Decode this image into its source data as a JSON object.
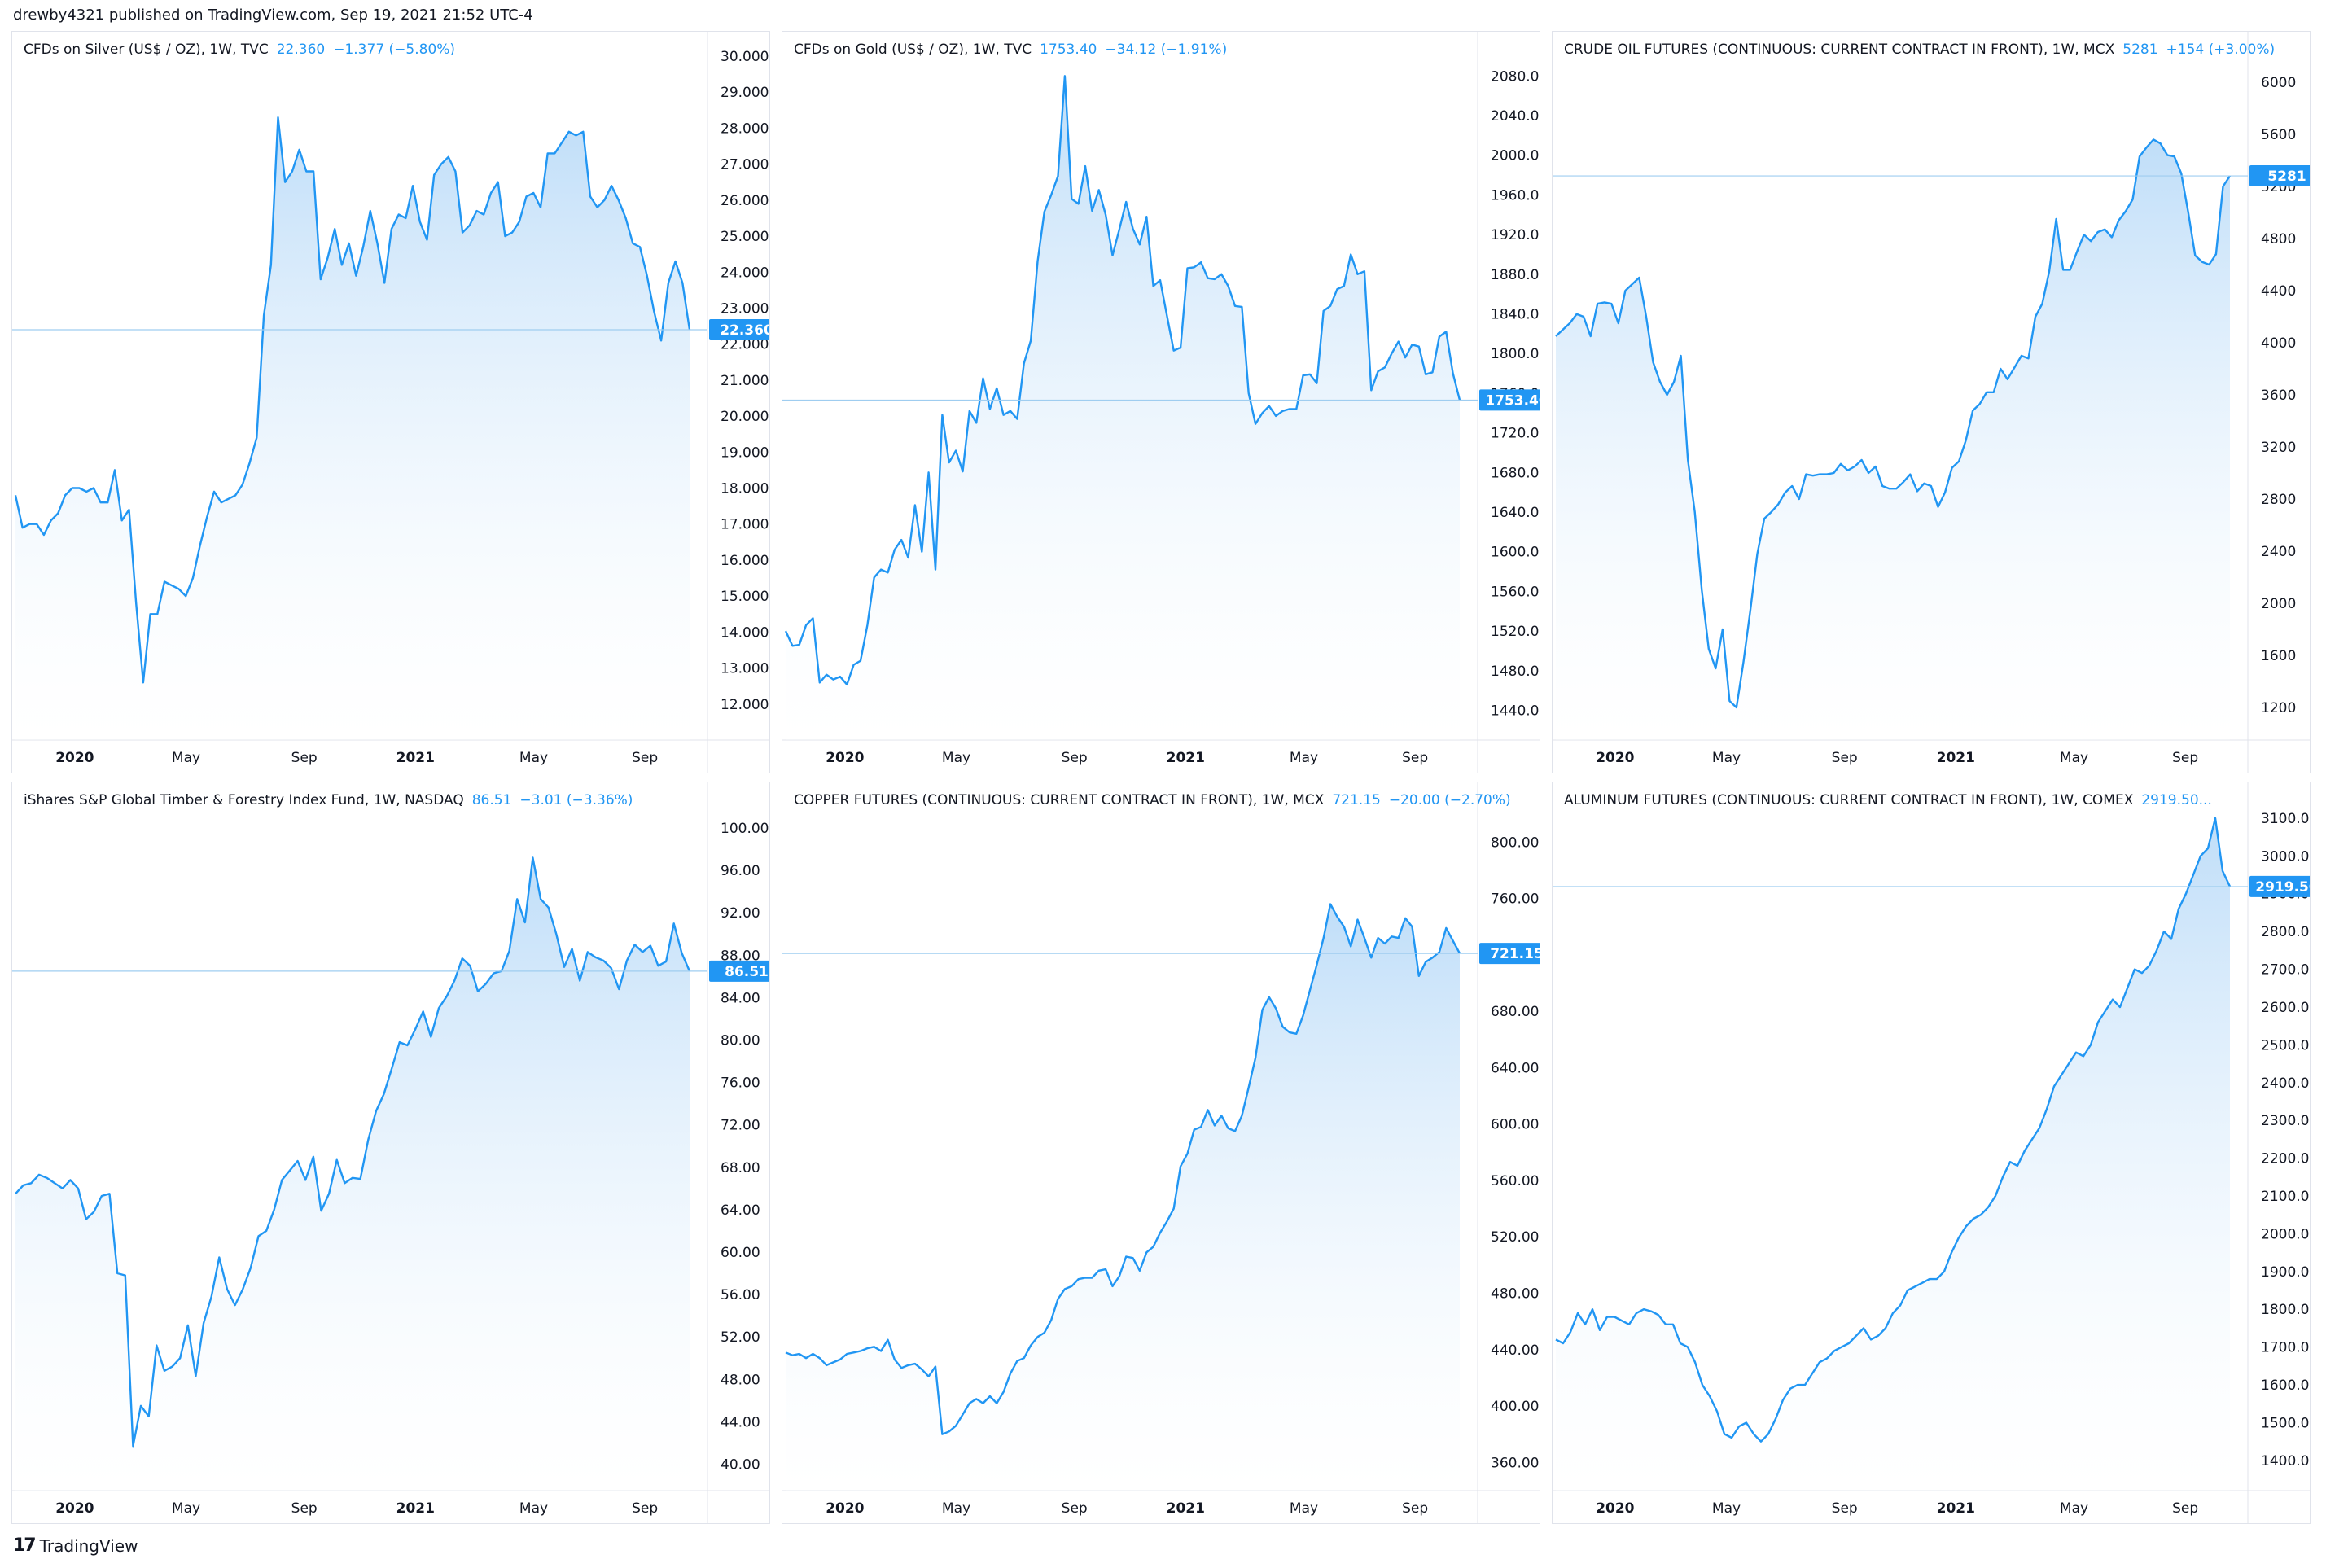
{
  "header": {
    "published": "drewby4321 published on TradingView.com, Sep 19, 2021 21:52 UTC-4"
  },
  "footer": {
    "brand": "TradingView",
    "icon": "tradingview-logo-icon"
  },
  "colors": {
    "line": "#2196f3",
    "fill_top": "#bcdcf8",
    "grid": "#f0f3fa",
    "text": "#131722",
    "border": "#e0e3eb"
  },
  "chart_data": [
    {
      "type": "area",
      "title": "CFDs on Silver (US$ / OZ), 1W, TVC",
      "last_price": "22.360",
      "change": "−1.377 (−5.80%)",
      "price_label": "22.360",
      "x_labels": [
        "2020",
        "May",
        "Sep",
        "2021",
        "May",
        "Sep"
      ],
      "y_ticks": [
        "30.000",
        "29.000",
        "28.000",
        "27.000",
        "26.000",
        "25.000",
        "24.000",
        "23.000",
        "22.000",
        "21.000",
        "20.000",
        "19.000",
        "18.000",
        "17.000",
        "16.000",
        "15.000",
        "14.000",
        "13.000",
        "12.000"
      ],
      "ylim": [
        11.0,
        30.0
      ],
      "values": [
        17.8,
        16.9,
        17.0,
        17.0,
        16.7,
        17.1,
        17.3,
        17.8,
        18.0,
        18.0,
        17.9,
        18.0,
        17.6,
        17.6,
        18.5,
        17.1,
        17.4,
        14.8,
        12.6,
        14.5,
        14.5,
        15.4,
        15.3,
        15.2,
        15.0,
        15.5,
        16.4,
        17.2,
        17.9,
        17.6,
        17.7,
        17.8,
        18.1,
        18.7,
        19.4,
        22.8,
        24.2,
        28.3,
        26.5,
        26.8,
        27.4,
        26.8,
        26.8,
        23.8,
        24.4,
        25.2,
        24.2,
        24.8,
        23.9,
        24.7,
        25.7,
        24.8,
        23.7,
        25.2,
        25.6,
        25.5,
        26.4,
        25.4,
        24.9,
        26.7,
        27.0,
        27.2,
        26.8,
        25.1,
        25.3,
        25.7,
        25.6,
        26.2,
        26.5,
        25.0,
        25.1,
        25.4,
        26.1,
        26.2,
        25.8,
        27.3,
        27.3,
        27.6,
        27.9,
        27.8,
        27.9,
        26.1,
        25.8,
        26.0,
        26.4,
        26.0,
        25.5,
        24.8,
        24.7,
        23.9,
        22.9,
        22.1,
        23.7,
        24.3,
        23.7,
        22.4
      ]
    },
    {
      "type": "area",
      "title": "CFDs on Gold (US$ / OZ), 1W, TVC",
      "last_price": "1753.40",
      "change": "−34.12 (−1.91%)",
      "price_label": "1753.40",
      "x_labels": [
        "2020",
        "May",
        "Sep",
        "2021",
        "May",
        "Sep"
      ],
      "y_ticks": [
        "2080.00",
        "2040.00",
        "2000.00",
        "1960.00",
        "1920.00",
        "1880.00",
        "1840.00",
        "1800.00",
        "1760.00",
        "1720.00",
        "1680.00",
        "1640.00",
        "1600.00",
        "1560.00",
        "1520.00",
        "1480.00",
        "1440.00"
      ],
      "ylim": [
        1410,
        2100
      ],
      "values": [
        1520,
        1505,
        1506,
        1526,
        1533,
        1468,
        1476,
        1471,
        1474,
        1466,
        1486,
        1490,
        1526,
        1574,
        1582,
        1579,
        1602,
        1612,
        1594,
        1647,
        1600,
        1680,
        1582,
        1738,
        1690,
        1702,
        1681,
        1742,
        1730,
        1775,
        1744,
        1765,
        1738,
        1742,
        1734,
        1790,
        1813,
        1893,
        1943,
        1960,
        1979,
        2080,
        1956,
        1951,
        1989,
        1944,
        1965,
        1940,
        1899,
        1925,
        1953,
        1926,
        1910,
        1938,
        1868,
        1874,
        1838,
        1803,
        1806,
        1886,
        1887,
        1892,
        1876,
        1875,
        1880,
        1868,
        1848,
        1847,
        1760,
        1729,
        1740,
        1747,
        1737,
        1742,
        1744,
        1744,
        1778,
        1779,
        1770,
        1843,
        1848,
        1865,
        1868,
        1900,
        1880,
        1883,
        1763,
        1782,
        1786,
        1800,
        1812,
        1796,
        1809,
        1807,
        1779,
        1781,
        1817,
        1822,
        1780,
        1753
      ]
    },
    {
      "type": "area",
      "title": "CRUDE OIL FUTURES (CONTINUOUS: CURRENT CONTRACT IN FRONT), 1W, MCX",
      "last_price": "5281",
      "change": "+154 (+3.00%)",
      "price_label": "5281",
      "x_labels": [
        "2020",
        "May",
        "Sep",
        "2021",
        "May",
        "Sep"
      ],
      "y_ticks": [
        "6000",
        "5600",
        "5200",
        "4800",
        "4400",
        "4000",
        "3600",
        "3200",
        "2800",
        "2400",
        "2000",
        "1600",
        "1200"
      ],
      "ylim": [
        950,
        6200
      ],
      "values": [
        4050,
        4100,
        4150,
        4220,
        4200,
        4050,
        4300,
        4310,
        4300,
        4150,
        4400,
        4450,
        4500,
        4200,
        3850,
        3700,
        3600,
        3700,
        3900,
        3100,
        2700,
        2100,
        1650,
        1500,
        1800,
        1250,
        1200,
        1550,
        1950,
        2380,
        2650,
        2700,
        2760,
        2850,
        2900,
        2800,
        2990,
        2980,
        2990,
        2990,
        3000,
        3070,
        3020,
        3050,
        3100,
        3000,
        3050,
        2900,
        2880,
        2880,
        2930,
        2990,
        2860,
        2920,
        2900,
        2740,
        2850,
        3040,
        3090,
        3250,
        3480,
        3530,
        3620,
        3620,
        3800,
        3720,
        3810,
        3900,
        3880,
        4200,
        4300,
        4550,
        4950,
        4560,
        4560,
        4700,
        4830,
        4780,
        4850,
        4870,
        4810,
        4940,
        5010,
        5100,
        5430,
        5500,
        5560,
        5530,
        5440,
        5430,
        5300,
        5000,
        4670,
        4620,
        4600,
        4680,
        5200,
        5281
      ]
    },
    {
      "type": "area",
      "title": "iShares S&P Global Timber & Forestry Index Fund, 1W, NASDAQ",
      "last_price": "86.51",
      "change": "−3.01 (−3.36%)",
      "price_label": "86.51",
      "x_labels": [
        "2020",
        "May",
        "Sep",
        "2021",
        "May",
        "Sep"
      ],
      "y_ticks": [
        "100.00",
        "96.00",
        "92.00",
        "88.00",
        "84.00",
        "80.00",
        "76.00",
        "72.00",
        "68.00",
        "64.00",
        "60.00",
        "56.00",
        "52.00",
        "48.00",
        "44.00",
        "40.00"
      ],
      "ylim": [
        37.5,
        102.0
      ],
      "values": [
        65.5,
        66.3,
        66.5,
        67.3,
        67.0,
        66.5,
        66.0,
        66.8,
        66.0,
        63.1,
        63.8,
        65.3,
        65.5,
        58.0,
        57.8,
        41.7,
        45.5,
        44.5,
        51.2,
        48.8,
        49.2,
        50.0,
        53.1,
        48.3,
        53.3,
        55.8,
        59.5,
        56.5,
        55.0,
        56.5,
        58.5,
        61.5,
        62.0,
        64.0,
        66.8,
        67.7,
        68.6,
        66.8,
        69.0,
        63.9,
        65.5,
        68.7,
        66.5,
        67.0,
        66.9,
        70.6,
        73.3,
        74.9,
        77.3,
        79.8,
        79.5,
        81.0,
        82.7,
        80.3,
        83.0,
        84.1,
        85.6,
        87.7,
        87.0,
        84.6,
        85.3,
        86.3,
        86.5,
        88.4,
        93.3,
        91.1,
        97.2,
        93.3,
        92.5,
        90.0,
        86.9,
        88.6,
        85.6,
        88.3,
        87.8,
        87.5,
        86.8,
        84.8,
        87.5,
        89.0,
        88.3,
        88.9,
        87.0,
        87.4,
        91.0,
        88.2,
        86.5
      ]
    },
    {
      "type": "area",
      "title": "COPPER FUTURES (CONTINUOUS: CURRENT CONTRACT IN FRONT), 1W, MCX",
      "last_price": "721.15",
      "change": "−20.00 (−2.70%)",
      "price_label": "721.15",
      "x_labels": [
        "2020",
        "May",
        "Sep",
        "2021",
        "May",
        "Sep"
      ],
      "y_ticks": [
        "800.00",
        "760.00",
        "720.00",
        "680.00",
        "640.00",
        "600.00",
        "560.00",
        "520.00",
        "480.00",
        "440.00",
        "400.00",
        "360.00"
      ],
      "ylim": [
        340,
        825
      ],
      "values": [
        438,
        436,
        437,
        434,
        437,
        434,
        429,
        431,
        433,
        437,
        438,
        439,
        441,
        442,
        439,
        447,
        433,
        427,
        429,
        430,
        426,
        421,
        428,
        380,
        382,
        386,
        394,
        402,
        405,
        402,
        407,
        402,
        410,
        423,
        432,
        434,
        443,
        449,
        452,
        461,
        476,
        483,
        485,
        490,
        491,
        491,
        496,
        497,
        485,
        492,
        506,
        505,
        496,
        509,
        513,
        523,
        531,
        540,
        570,
        579,
        596,
        598,
        610,
        599,
        606,
        597,
        595,
        606,
        626,
        647,
        681,
        690,
        682,
        669,
        665,
        664,
        677,
        695,
        713,
        732,
        756,
        747,
        740,
        726,
        745,
        732,
        718,
        732,
        728,
        733,
        732,
        746,
        740,
        705,
        715,
        718,
        722,
        739,
        730,
        721
      ]
    },
    {
      "type": "area",
      "title": "ALUMINUM FUTURES (CONTINUOUS: CURRENT CONTRACT IN FRONT), 1W, COMEX",
      "last_price": "2919.50...",
      "change": "",
      "price_label": "2919.50",
      "x_labels": [
        "2020",
        "May",
        "Sep",
        "2021",
        "May",
        "Sep"
      ],
      "y_ticks": [
        "3100.00",
        "3000.00",
        "2900.00",
        "2800.00",
        "2700.00",
        "2600.00",
        "2500.00",
        "2400.00",
        "2300.00",
        "2200.00",
        "2100.00",
        "2000.00",
        "1900.00",
        "1800.00",
        "1700.00",
        "1600.00",
        "1500.00",
        "1400.00"
      ],
      "ylim": [
        1320,
        3130
      ],
      "values": [
        1720,
        1710,
        1740,
        1790,
        1760,
        1800,
        1745,
        1780,
        1780,
        1770,
        1760,
        1790,
        1800,
        1795,
        1785,
        1760,
        1760,
        1710,
        1700,
        1660,
        1600,
        1570,
        1530,
        1470,
        1460,
        1490,
        1500,
        1470,
        1450,
        1470,
        1510,
        1560,
        1590,
        1600,
        1600,
        1630,
        1660,
        1670,
        1690,
        1700,
        1710,
        1730,
        1750,
        1720,
        1730,
        1750,
        1790,
        1810,
        1850,
        1860,
        1870,
        1880,
        1880,
        1900,
        1950,
        1990,
        2020,
        2040,
        2050,
        2070,
        2100,
        2150,
        2190,
        2180,
        2220,
        2250,
        2280,
        2330,
        2390,
        2420,
        2450,
        2480,
        2470,
        2500,
        2560,
        2590,
        2620,
        2600,
        2650,
        2700,
        2690,
        2710,
        2750,
        2800,
        2780,
        2860,
        2900,
        2950,
        3000,
        3020,
        3100,
        2960,
        2919
      ]
    }
  ]
}
